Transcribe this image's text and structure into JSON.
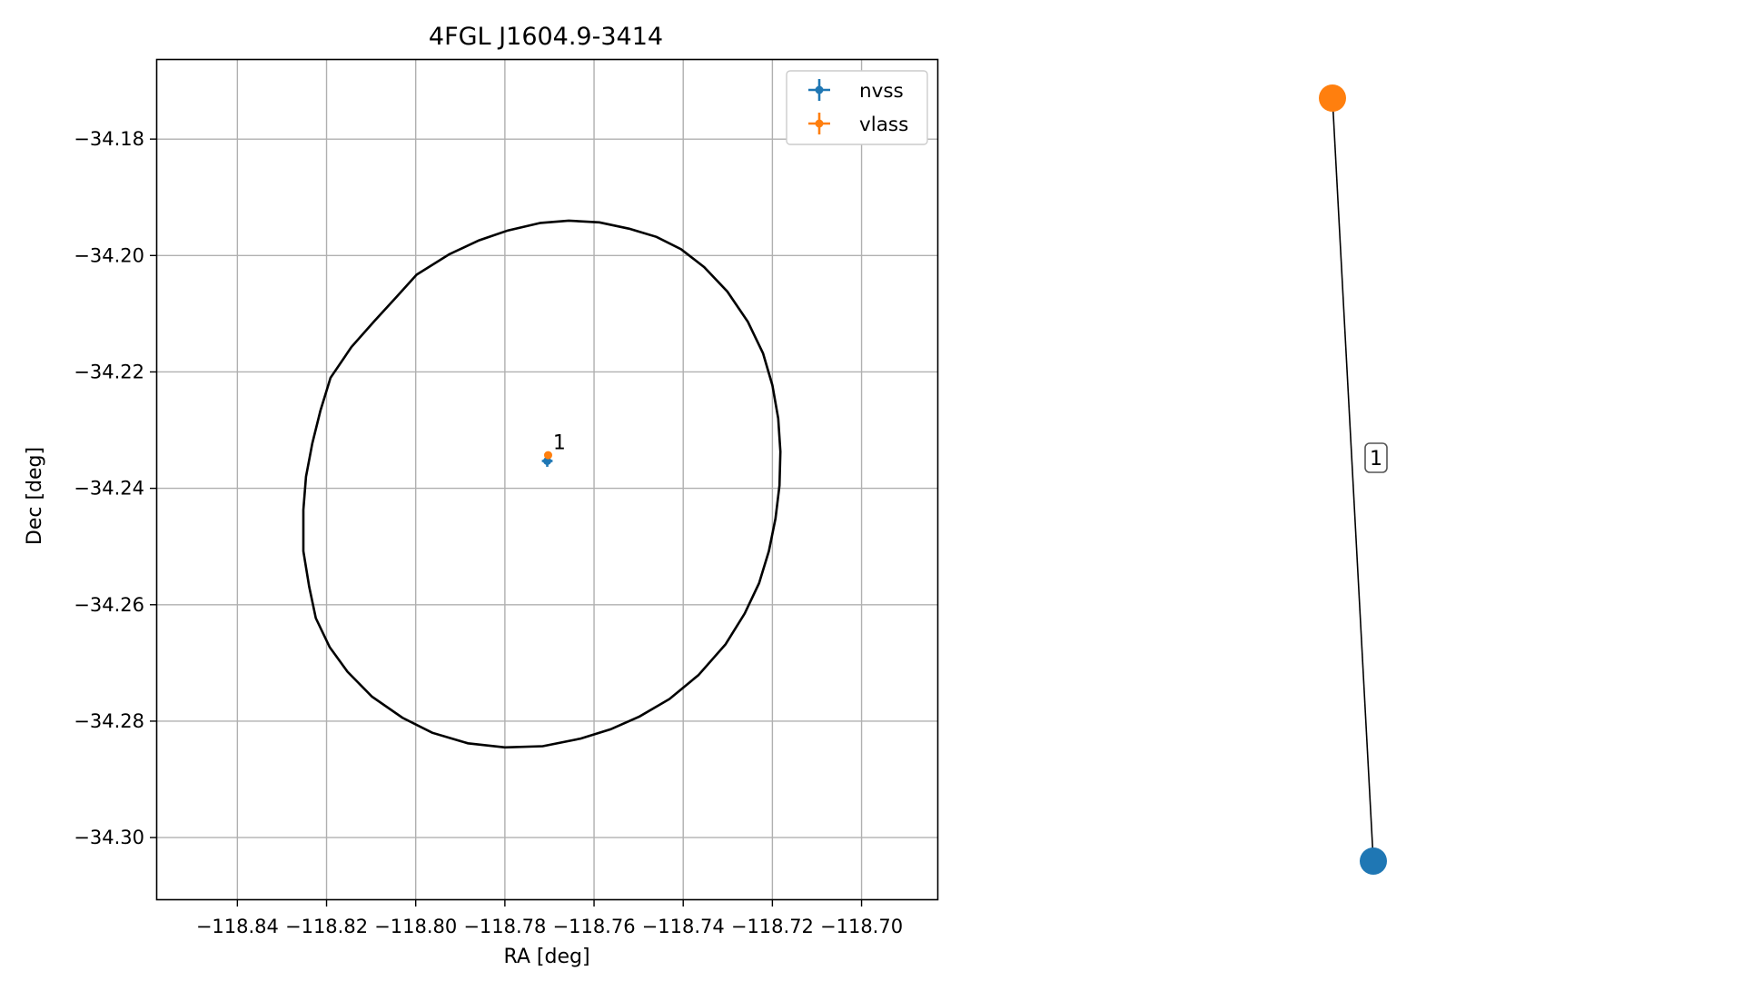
{
  "chart_data": [
    {
      "type": "scatter",
      "title": "4FGL J1604.9-3414",
      "xlabel": "RA [deg]",
      "ylabel": "Dec [deg]",
      "xlim": [
        -118.858,
        -118.683
      ],
      "ylim": [
        -34.3106,
        -34.1664
      ],
      "xticks": [
        -118.84,
        -118.82,
        -118.8,
        -118.78,
        -118.76,
        -118.74,
        -118.72,
        -118.7
      ],
      "xtick_labels": [
        "−118.84",
        "−118.82",
        "−118.80",
        "−118.78",
        "−118.76",
        "−118.74",
        "−118.72",
        "−118.70"
      ],
      "yticks": [
        -34.18,
        -34.2,
        -34.22,
        -34.24,
        -34.26,
        -34.28,
        -34.3
      ],
      "ytick_labels": [
        "−34.18",
        "−34.20",
        "−34.22",
        "−34.24",
        "−34.26",
        "−34.28",
        "−34.30"
      ],
      "grid": true,
      "legend_position": "top-right",
      "series": [
        {
          "name": "nvss",
          "color": "#1f77b4",
          "x": [
            -118.7705
          ],
          "y": [
            -34.2353
          ],
          "xerr": [
            0.0012
          ],
          "yerr": [
            0.001
          ]
        },
        {
          "name": "vlass",
          "color": "#ff7f0e",
          "x": [
            -118.7703
          ],
          "y": [
            -34.2343
          ],
          "xerr": [
            0.0002
          ],
          "yerr": [
            0.0002
          ]
        }
      ],
      "ellipse": {
        "color": "#000000",
        "points": [
          [
            -118.8252,
            -34.2437
          ],
          [
            -118.8246,
            -34.238
          ],
          [
            -118.8232,
            -34.2323
          ],
          [
            -118.8214,
            -34.2267
          ],
          [
            -118.8191,
            -34.221
          ],
          [
            -118.8144,
            -34.2157
          ],
          [
            -118.8092,
            -34.2112
          ],
          [
            -118.8044,
            -34.2072
          ],
          [
            -118.7998,
            -34.2033
          ],
          [
            -118.7925,
            -34.1998
          ],
          [
            -118.7858,
            -34.1974
          ],
          [
            -118.7793,
            -34.1957
          ],
          [
            -118.772,
            -34.1944
          ],
          [
            -118.7657,
            -34.194
          ],
          [
            -118.7588,
            -34.1943
          ],
          [
            -118.7521,
            -34.1954
          ],
          [
            -118.746,
            -34.1968
          ],
          [
            -118.7405,
            -34.1989
          ],
          [
            -118.7353,
            -34.202
          ],
          [
            -118.7301,
            -34.2062
          ],
          [
            -118.7255,
            -34.2114
          ],
          [
            -118.7221,
            -34.2168
          ],
          [
            -118.72,
            -34.2223
          ],
          [
            -118.7187,
            -34.228
          ],
          [
            -118.7182,
            -34.2337
          ],
          [
            -118.7184,
            -34.2395
          ],
          [
            -118.7193,
            -34.2452
          ],
          [
            -118.7208,
            -34.2508
          ],
          [
            -118.723,
            -34.2563
          ],
          [
            -118.7262,
            -34.2615
          ],
          [
            -118.7305,
            -34.2668
          ],
          [
            -118.7366,
            -34.2721
          ],
          [
            -118.7431,
            -34.2762
          ],
          [
            -118.7498,
            -34.2792
          ],
          [
            -118.7563,
            -34.2814
          ],
          [
            -118.763,
            -34.283
          ],
          [
            -118.7715,
            -34.2843
          ],
          [
            -118.78,
            -34.2845
          ],
          [
            -118.7883,
            -34.2838
          ],
          [
            -118.7963,
            -34.282
          ],
          [
            -118.803,
            -34.2794
          ],
          [
            -118.8098,
            -34.2758
          ],
          [
            -118.8153,
            -34.2715
          ],
          [
            -118.8193,
            -34.2673
          ],
          [
            -118.8224,
            -34.2623
          ],
          [
            -118.8239,
            -34.2569
          ],
          [
            -118.8252,
            -34.2508
          ],
          [
            -118.8252,
            -34.2437
          ]
        ]
      },
      "annotations": [
        {
          "text": "1",
          "x": -118.7698,
          "y": -34.2322
        }
      ]
    },
    {
      "type": "graph",
      "nodes": [
        {
          "id": "vlass",
          "color": "#ff7f0e"
        },
        {
          "id": "nvss",
          "color": "#1f77b4"
        }
      ],
      "edges": [
        {
          "source": "vlass",
          "target": "nvss",
          "label": "1"
        }
      ]
    }
  ]
}
